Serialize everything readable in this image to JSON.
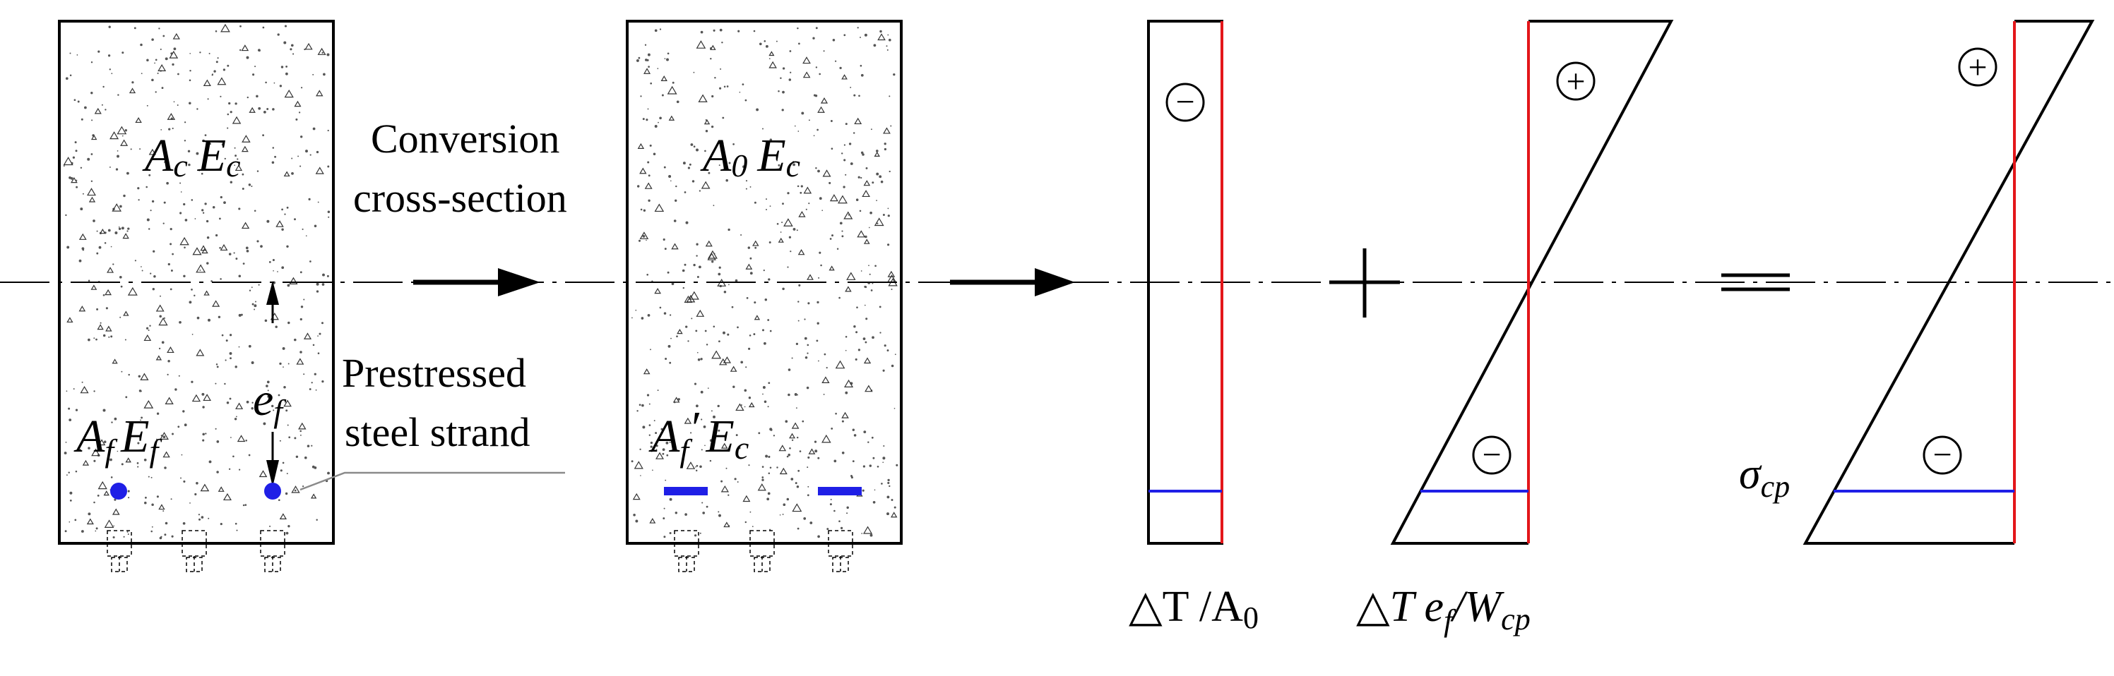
{
  "section1": {
    "area_label": "A",
    "area_sub": "c",
    "modulus_label": "E",
    "modulus_sub": "c",
    "strand_area": "A",
    "strand_area_sub": "f",
    "strand_modulus": "E",
    "strand_modulus_sub": "f",
    "eccentricity": "e",
    "eccentricity_sub": "f"
  },
  "conversion_label_line1": "Conversion",
  "conversion_label_line2": "cross-section",
  "strand_label_line1": "Prestressed",
  "strand_label_line2": "steel strand",
  "section2": {
    "area_label": "A",
    "area_sub": "0",
    "modulus_label": "E",
    "modulus_sub": "c",
    "strand_area": "A",
    "strand_area_sub": "f",
    "strand_prime": "′",
    "strand_modulus": "E",
    "strand_modulus_sub": "c"
  },
  "diagram1": {
    "sign": "−",
    "label_main": "△T /A",
    "label_sub": "0"
  },
  "diagram2": {
    "sign_top": "+",
    "sign_bottom": "−",
    "label_main": "△T e",
    "label_sub1": "f",
    "label_mid": "/W",
    "label_sub2": "cp"
  },
  "plus_operator": "+",
  "equals_operator": "=",
  "diagram3": {
    "sign_top": "+",
    "sign_bottom": "−",
    "sigma": "σ",
    "sigma_sub": "cp"
  },
  "colors": {
    "axis_red": "#e3161a",
    "strand_blue": "#1f1fe6",
    "line": "#000000"
  }
}
